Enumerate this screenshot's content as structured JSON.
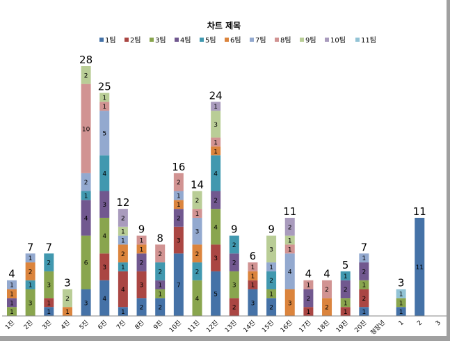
{
  "chart_data": {
    "type": "bar",
    "stacked": true,
    "title": "차트 제목",
    "legend_position": "top",
    "grid": false,
    "ylim": [
      0,
      28
    ],
    "categories": [
      "1진",
      "2진",
      "3진",
      "4진",
      "5진",
      "6진",
      "7진",
      "8진",
      "9진",
      "10진",
      "11진",
      "12진",
      "13진",
      "14진",
      "15진",
      "16진",
      "17진",
      "18진",
      "19진",
      "20진",
      "청장년",
      "1",
      "2",
      "3"
    ],
    "series": [
      {
        "name": "1팀",
        "color": "#4572A7",
        "values": [
          0,
          0,
          1,
          0,
          3,
          4,
          1,
          2,
          2,
          7,
          0,
          5,
          0,
          3,
          2,
          0,
          0,
          0,
          0,
          1,
          0,
          1,
          11,
          0
        ]
      },
      {
        "name": "2팀",
        "color": "#AA4643",
        "values": [
          0,
          0,
          1,
          0,
          0,
          3,
          4,
          3,
          0,
          3,
          0,
          3,
          2,
          1,
          0,
          0,
          1,
          0,
          1,
          2,
          0,
          0,
          0,
          0
        ]
      },
      {
        "name": "3팀",
        "color": "#89A54E",
        "values": [
          1,
          3,
          3,
          0,
          6,
          4,
          0,
          0,
          1,
          0,
          4,
          4,
          3,
          0,
          1,
          0,
          0,
          0,
          1,
          1,
          0,
          1,
          0,
          0
        ]
      },
      {
        "name": "4팀",
        "color": "#71588F",
        "values": [
          1,
          0,
          0,
          0,
          4,
          3,
          0,
          2,
          1,
          2,
          0,
          2,
          2,
          0,
          0,
          0,
          2,
          0,
          2,
          2,
          0,
          0,
          0,
          0
        ]
      },
      {
        "name": "5팀",
        "color": "#4198AF",
        "values": [
          0,
          1,
          2,
          0,
          1,
          4,
          1,
          0,
          2,
          0,
          2,
          4,
          2,
          0,
          2,
          0,
          0,
          0,
          1,
          0,
          0,
          0,
          0,
          0
        ]
      },
      {
        "name": "6팀",
        "color": "#DB843D",
        "values": [
          1,
          2,
          0,
          1,
          0,
          0,
          2,
          1,
          0,
          1,
          2,
          1,
          0,
          1,
          0,
          3,
          0,
          2,
          0,
          0,
          0,
          0,
          0,
          0
        ]
      },
      {
        "name": "7팀",
        "color": "#93A9CF",
        "values": [
          1,
          1,
          0,
          0,
          2,
          5,
          1,
          0,
          0,
          1,
          3,
          0,
          0,
          0,
          1,
          4,
          0,
          0,
          0,
          1,
          0,
          0,
          0,
          0
        ]
      },
      {
        "name": "8팀",
        "color": "#D19392",
        "values": [
          0,
          0,
          0,
          0,
          10,
          1,
          0,
          1,
          2,
          2,
          1,
          1,
          0,
          1,
          0,
          1,
          1,
          2,
          0,
          0,
          0,
          0,
          0,
          0
        ]
      },
      {
        "name": "9팀",
        "color": "#B9CD96",
        "values": [
          0,
          0,
          0,
          2,
          2,
          1,
          1,
          0,
          0,
          0,
          2,
          3,
          0,
          0,
          3,
          1,
          0,
          0,
          0,
          0,
          0,
          0,
          0,
          0
        ]
      },
      {
        "name": "10팀",
        "color": "#A99BBD",
        "values": [
          0,
          0,
          0,
          0,
          0,
          0,
          2,
          0,
          0,
          0,
          0,
          1,
          0,
          0,
          0,
          2,
          0,
          0,
          0,
          0,
          0,
          0,
          0,
          0
        ]
      },
      {
        "name": "11팀",
        "color": "#92C3D5",
        "values": [
          0,
          0,
          0,
          0,
          0,
          0,
          0,
          0,
          0,
          0,
          0,
          0,
          0,
          0,
          0,
          0,
          0,
          0,
          0,
          0,
          0,
          1,
          0,
          0
        ]
      }
    ],
    "totals": [
      4,
      7,
      7,
      3,
      28,
      25,
      12,
      9,
      8,
      16,
      14,
      24,
      9,
      6,
      9,
      11,
      4,
      4,
      5,
      7,
      null,
      3,
      11,
      null
    ]
  }
}
